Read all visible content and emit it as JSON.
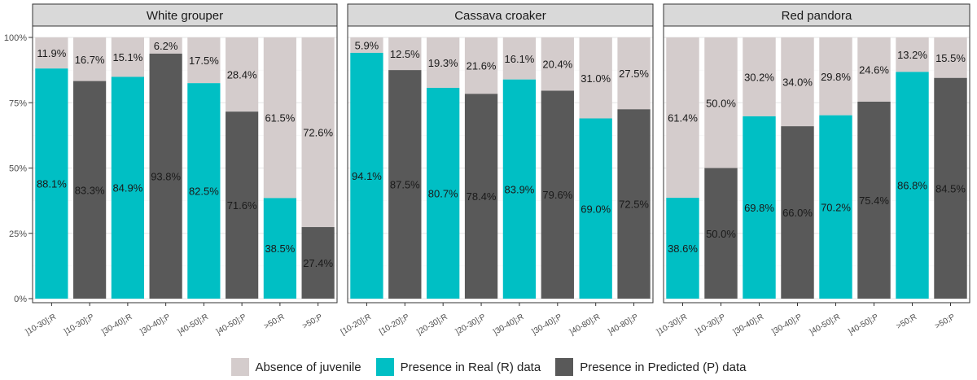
{
  "chart_data": {
    "type": "bar",
    "stacked": true,
    "y_tick_labels": [
      "0%",
      "25%",
      "50%",
      "75%",
      "100%"
    ],
    "ylim": [
      0,
      100
    ],
    "grid": true,
    "legend_placement": "bottom",
    "legend": [
      {
        "label": "Absence of juvenile",
        "color": "#d4cccc"
      },
      {
        "label": "Presence in Real (R) data",
        "color": "#00bfc4"
      },
      {
        "label": "Presence in Predicted (P) data",
        "color": "#595959"
      }
    ],
    "colors": {
      "absence": "#d4cccc",
      "real": "#00bfc4",
      "predicted": "#595959"
    },
    "panels": [
      {
        "title": "White grouper",
        "bars": [
          {
            "category": "]10-30];R",
            "kind": "real",
            "presence": 88.1,
            "presence_label": "88.1%",
            "absence_label": "11.9%"
          },
          {
            "category": "]10-30];P",
            "kind": "predicted",
            "presence": 83.3,
            "presence_label": "83.3%",
            "absence_label": "16.7%"
          },
          {
            "category": "]30-40];R",
            "kind": "real",
            "presence": 84.9,
            "presence_label": "84.9%",
            "absence_label": "15.1%"
          },
          {
            "category": "]30-40];P",
            "kind": "predicted",
            "presence": 93.8,
            "presence_label": "93.8%",
            "absence_label": "6.2%"
          },
          {
            "category": "]40-50];R",
            "kind": "real",
            "presence": 82.5,
            "presence_label": "82.5%",
            "absence_label": "17.5%"
          },
          {
            "category": "]40-50];P",
            "kind": "predicted",
            "presence": 71.6,
            "presence_label": "71.6%",
            "absence_label": "28.4%"
          },
          {
            "category": ">50;R",
            "kind": "real",
            "presence": 38.5,
            "presence_label": "38.5%",
            "absence_label": "61.5%"
          },
          {
            "category": ">50;P",
            "kind": "predicted",
            "presence": 27.4,
            "presence_label": "27.4%",
            "absence_label": "72.6%"
          }
        ]
      },
      {
        "title": "Cassava croaker",
        "bars": [
          {
            "category": "[10-20];R",
            "kind": "real",
            "presence": 94.1,
            "presence_label": "94.1%",
            "absence_label": "5.9%"
          },
          {
            "category": "[10-20];P",
            "kind": "predicted",
            "presence": 87.5,
            "presence_label": "87.5%",
            "absence_label": "12.5%"
          },
          {
            "category": "]20-30];R",
            "kind": "real",
            "presence": 80.7,
            "presence_label": "80.7%",
            "absence_label": "19.3%"
          },
          {
            "category": "]20-30];P",
            "kind": "predicted",
            "presence": 78.4,
            "presence_label": "78.4%",
            "absence_label": "21.6%"
          },
          {
            "category": "]30-40];R",
            "kind": "real",
            "presence": 83.9,
            "presence_label": "83.9%",
            "absence_label": "16.1%"
          },
          {
            "category": "]30-40];P",
            "kind": "predicted",
            "presence": 79.6,
            "presence_label": "79.6%",
            "absence_label": "20.4%"
          },
          {
            "category": "]40-80];R",
            "kind": "real",
            "presence": 69.0,
            "presence_label": "69.0%",
            "absence_label": "31.0%"
          },
          {
            "category": "]40-80];P",
            "kind": "predicted",
            "presence": 72.5,
            "presence_label": "72.5%",
            "absence_label": "27.5%"
          }
        ]
      },
      {
        "title": "Red pandora",
        "bars": [
          {
            "category": "]10-30];R",
            "kind": "real",
            "presence": 38.6,
            "presence_label": "38.6%",
            "absence_label": "61.4%"
          },
          {
            "category": "]10-30];P",
            "kind": "predicted",
            "presence": 50.0,
            "presence_label": "50.0%",
            "absence_label": "50.0%"
          },
          {
            "category": "]30-40];R",
            "kind": "real",
            "presence": 69.8,
            "presence_label": "69.8%",
            "absence_label": "30.2%"
          },
          {
            "category": "]30-40];P",
            "kind": "predicted",
            "presence": 66.0,
            "presence_label": "66.0%",
            "absence_label": "34.0%"
          },
          {
            "category": "]40-50];R",
            "kind": "real",
            "presence": 70.2,
            "presence_label": "70.2%",
            "absence_label": "29.8%"
          },
          {
            "category": "]40-50];P",
            "kind": "predicted",
            "presence": 75.4,
            "presence_label": "75.4%",
            "absence_label": "24.6%"
          },
          {
            "category": ">50;R",
            "kind": "real",
            "presence": 86.8,
            "presence_label": "86.8%",
            "absence_label": "13.2%"
          },
          {
            "category": ">50;P",
            "kind": "predicted",
            "presence": 84.5,
            "presence_label": "84.5%",
            "absence_label": "15.5%"
          }
        ]
      }
    ]
  }
}
